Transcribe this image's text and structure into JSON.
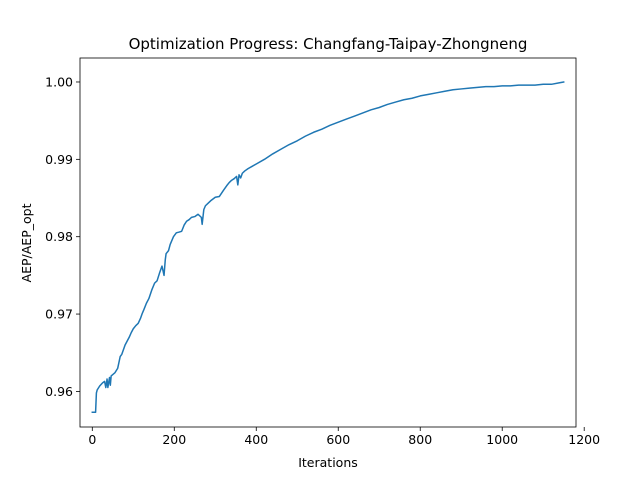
{
  "chart_data": {
    "type": "line",
    "title": "Optimization Progress: Changfang-Taipay-Zhongneng",
    "xlabel": "Iterations",
    "ylabel": "AEP/AEP_opt",
    "xlim": [
      -30,
      1180
    ],
    "ylim": [
      0.9554,
      1.0031
    ],
    "xticks": [
      0,
      200,
      400,
      600,
      800,
      1000,
      1200
    ],
    "xtick_labels": [
      "0",
      "200",
      "400",
      "600",
      "800",
      "1000",
      "1200"
    ],
    "yticks": [
      0.96,
      0.97,
      0.98,
      0.99,
      1.0
    ],
    "ytick_labels": [
      "0.96",
      "0.97",
      "0.98",
      "0.99",
      "1.00"
    ],
    "grid": false,
    "series": [
      {
        "color": "#1f77b4",
        "x": [
          0,
          8,
          10,
          12,
          18,
          25,
          30,
          33,
          36,
          38,
          42,
          44,
          46,
          55,
          62,
          68,
          72,
          80,
          90,
          95,
          100,
          106,
          112,
          118,
          122,
          126,
          132,
          138,
          145,
          152,
          158,
          164,
          170,
          175,
          178,
          180,
          186,
          190,
          198,
          205,
          212,
          218,
          224,
          230,
          236,
          242,
          250,
          258,
          266,
          268,
          272,
          276,
          282,
          290,
          300,
          310,
          320,
          328,
          334,
          340,
          346,
          352,
          355,
          358,
          362,
          366,
          372,
          380,
          390,
          400,
          420,
          440,
          460,
          480,
          500,
          520,
          540,
          560,
          580,
          600,
          620,
          640,
          660,
          680,
          700,
          720,
          740,
          760,
          780,
          800,
          820,
          840,
          860,
          880,
          900,
          920,
          940,
          960,
          980,
          1000,
          1020,
          1040,
          1060,
          1080,
          1100,
          1120,
          1140,
          1150
        ],
        "y": [
          0.9573,
          0.9573,
          0.9598,
          0.9602,
          0.9607,
          0.9611,
          0.9613,
          0.9605,
          0.9616,
          0.9605,
          0.9618,
          0.9608,
          0.962,
          0.9624,
          0.963,
          0.9645,
          0.9648,
          0.966,
          0.967,
          0.9676,
          0.9681,
          0.9685,
          0.9688,
          0.9695,
          0.9701,
          0.9706,
          0.9714,
          0.972,
          0.9731,
          0.974,
          0.9743,
          0.9753,
          0.9762,
          0.975,
          0.977,
          0.9778,
          0.9782,
          0.979,
          0.98,
          0.9805,
          0.9806,
          0.9807,
          0.9815,
          0.982,
          0.9822,
          0.9825,
          0.9826,
          0.9829,
          0.9825,
          0.9816,
          0.9835,
          0.984,
          0.9843,
          0.9847,
          0.9851,
          0.9852,
          0.986,
          0.9866,
          0.987,
          0.9873,
          0.9875,
          0.9878,
          0.9867,
          0.988,
          0.9876,
          0.9882,
          0.9885,
          0.9888,
          0.9891,
          0.9894,
          0.99,
          0.9907,
          0.9913,
          0.9919,
          0.9924,
          0.993,
          0.9935,
          0.9939,
          0.9944,
          0.9948,
          0.9952,
          0.9956,
          0.996,
          0.9964,
          0.9967,
          0.9971,
          0.9974,
          0.9977,
          0.9979,
          0.9982,
          0.9984,
          0.9986,
          0.9988,
          0.999,
          0.9991,
          0.9992,
          0.9993,
          0.9994,
          0.9994,
          0.9995,
          0.9995,
          0.9996,
          0.9996,
          0.9996,
          0.9997,
          0.9997,
          0.9999,
          1.0
        ]
      }
    ]
  }
}
